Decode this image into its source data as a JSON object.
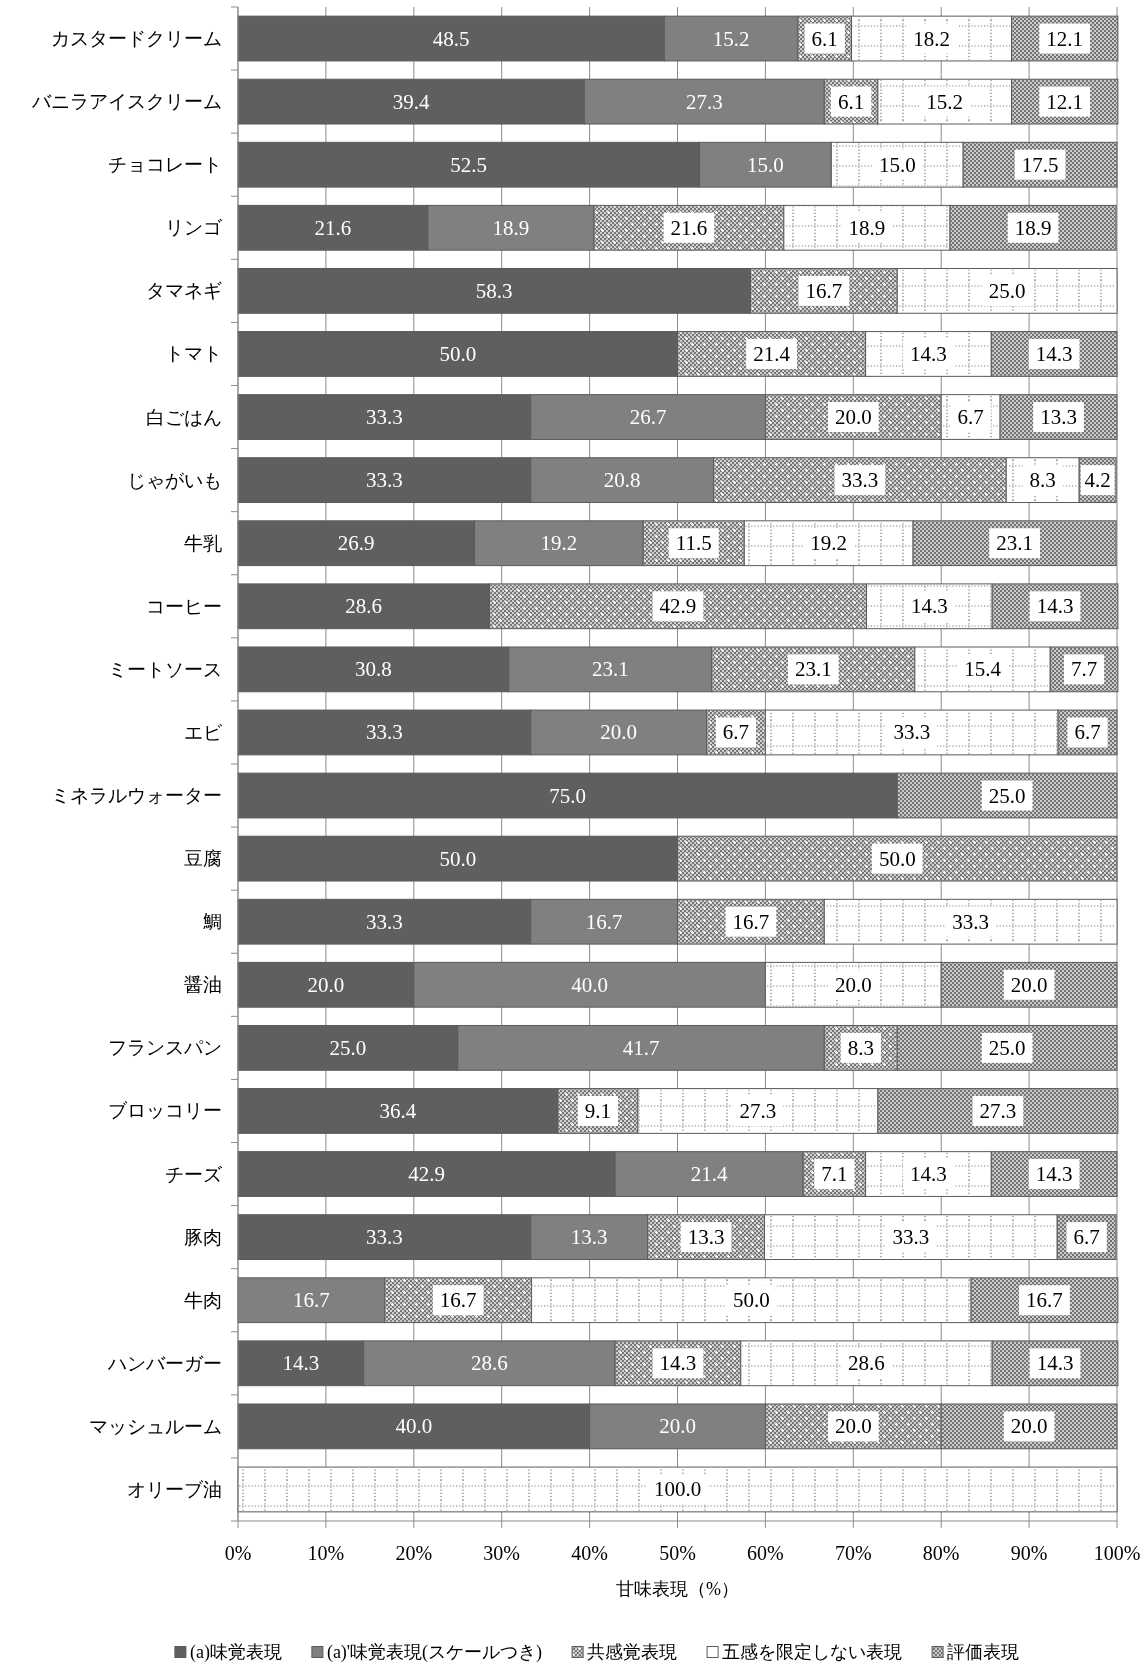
{
  "chart_data": {
    "type": "bar",
    "orientation": "horizontal",
    "stacked": true,
    "xlabel": "甘味表現（%）",
    "categories": [
      "カスタードクリーム",
      "バニラアイスクリーム",
      "チョコレート",
      "リンゴ",
      "タマネギ",
      "トマト",
      "白ごはん",
      "じゃがいも",
      "牛乳",
      "コーヒー",
      "ミートソース",
      "エビ",
      "ミネラルウォーター",
      "豆腐",
      "鯛",
      "醤油",
      "フランスパン",
      "ブロッコリー",
      "チーズ",
      "豚肉",
      "牛肉",
      "ハンバーガー",
      "マッシュルーム",
      "オリーブ油"
    ],
    "series": [
      {
        "name": "(a)味覚表現",
        "color": "#5f5f5f",
        "values": [
          48.5,
          39.4,
          52.5,
          21.6,
          58.3,
          50.0,
          33.3,
          33.3,
          26.9,
          28.6,
          30.8,
          33.3,
          75.0,
          50.0,
          33.3,
          20.0,
          25.0,
          36.4,
          42.9,
          33.3,
          null,
          14.3,
          40.0,
          null
        ],
        "value_labels": [
          "48.5",
          "39.4",
          "52.5",
          "21.6",
          "58.3",
          "50.0",
          "33.3",
          "33.3",
          "26.9",
          "28.6",
          "30.8",
          "33.3",
          "75.0",
          "50.0",
          "33.3",
          "20.0",
          "25.0",
          "36.4",
          "42.9",
          "33.3",
          null,
          "14.3",
          "40.0",
          null
        ]
      },
      {
        "name": "(a)'味覚表現(スケールつき)",
        "color": "#808080",
        "values": [
          15.2,
          27.3,
          15.0,
          18.9,
          null,
          null,
          26.7,
          20.8,
          19.2,
          null,
          23.1,
          20.0,
          null,
          null,
          16.7,
          40.0,
          41.7,
          null,
          21.4,
          13.3,
          16.7,
          28.6,
          20.0,
          null
        ],
        "value_labels": [
          "15.2",
          "27.3",
          "15.0",
          "18.9",
          null,
          null,
          "26.7",
          "20.8",
          "19.2",
          null,
          "23.1",
          "20.0",
          null,
          null,
          "16.7",
          "40.0",
          "41.7",
          null,
          "21.4",
          "13.3",
          "16.7",
          "28.6",
          "20.0",
          null
        ]
      },
      {
        "name": "共感覚表現",
        "color": "#a9a9a9",
        "values": [
          6.1,
          6.1,
          null,
          21.6,
          16.7,
          21.4,
          20.0,
          33.3,
          11.5,
          42.9,
          23.1,
          6.7,
          null,
          50.0,
          16.7,
          null,
          8.3,
          9.1,
          7.1,
          13.3,
          16.7,
          14.3,
          20.0,
          null
        ],
        "value_labels": [
          "6.1",
          "6.1",
          null,
          "21.6",
          "16.7",
          "21.4",
          "20.0",
          "33.3",
          "11.5",
          "42.9",
          "23.1",
          "6.7",
          null,
          "50.0",
          "16.7",
          null,
          "8.3",
          "9.1",
          "7.1",
          "13.3",
          "16.7",
          "14.3",
          "20.0",
          null
        ]
      },
      {
        "name": "五感を限定しない表現",
        "color": "#ffffff",
        "values": [
          18.2,
          15.2,
          15.0,
          18.9,
          25.0,
          14.3,
          6.7,
          8.3,
          19.2,
          14.3,
          15.4,
          33.3,
          null,
          null,
          33.3,
          20.0,
          null,
          27.3,
          14.3,
          33.3,
          50.0,
          28.6,
          null,
          100.0
        ],
        "value_labels": [
          "18.2",
          "15.2",
          "15.0",
          "18.9",
          "25.0",
          "14.3",
          "6.7",
          "8.3",
          "19.2",
          "14.3",
          "15.4",
          "33.3",
          null,
          null,
          "33.3",
          "20.0",
          null,
          "27.3",
          "14.3",
          "33.3",
          "50.0",
          "28.6",
          null,
          "100.0"
        ]
      },
      {
        "name": "評価表現",
        "color": "#a3a3a3",
        "values": [
          12.1,
          12.1,
          17.5,
          18.9,
          null,
          14.3,
          13.3,
          4.2,
          23.1,
          14.3,
          7.7,
          6.7,
          25.0,
          null,
          null,
          20.0,
          25.0,
          27.3,
          14.3,
          6.7,
          16.7,
          14.3,
          20.0,
          null
        ],
        "value_labels": [
          "12.1",
          "12.1",
          "17.5",
          "18.9",
          null,
          "14.3",
          "13.3",
          "4.2",
          "23.1",
          "14.3",
          "7.7",
          "6.7",
          "25.0",
          null,
          null,
          "20.0",
          "25.0",
          "27.3",
          "14.3",
          "6.7",
          "16.7",
          "14.3",
          "20.0",
          null
        ]
      }
    ],
    "xlim": [
      0,
      100
    ],
    "xticks": [
      {
        "value": 0,
        "label": "0%"
      },
      {
        "value": 10,
        "label": "10%"
      },
      {
        "value": 20,
        "label": "20%"
      },
      {
        "value": 30,
        "label": "30%"
      },
      {
        "value": 40,
        "label": "40%"
      },
      {
        "value": 50,
        "label": "50%"
      },
      {
        "value": 60,
        "label": "60%"
      },
      {
        "value": 70,
        "label": "70%"
      },
      {
        "value": 80,
        "label": "80%"
      },
      {
        "value": 90,
        "label": "90%"
      },
      {
        "value": 100,
        "label": "100%"
      }
    ],
    "grid": "x",
    "legend": "bottom"
  }
}
